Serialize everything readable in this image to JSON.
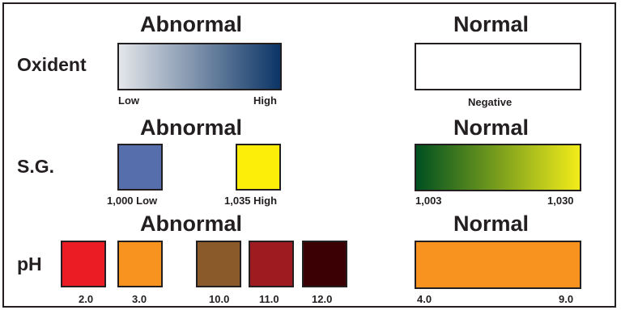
{
  "oxident": {
    "label": "Oxident",
    "abnormal_heading": "Abnormal",
    "normal_heading": "Normal",
    "abnormal_scale": {
      "low_label": "Low",
      "high_label": "High",
      "gradient_from": "#e4e6ea",
      "gradient_to": "#0c3566"
    },
    "normal_label": "Negative",
    "normal_color": "#ffffff"
  },
  "sg": {
    "label": "S.G.",
    "abnormal_heading": "Abnormal",
    "normal_heading": "Normal",
    "abnormal_swatches": [
      {
        "label": "1,000 Low",
        "color": "#566eab"
      },
      {
        "label": "1,035 High",
        "color": "#fdee0a"
      }
    ],
    "normal_scale": {
      "low_label": "1,003",
      "high_label": "1,030",
      "gradient_from": "#005020",
      "gradient_to": "#f2ec1a"
    }
  },
  "ph": {
    "label": "pH",
    "abnormal_heading": "Abnormal",
    "normal_heading": "Normal",
    "abnormal_swatches": [
      {
        "label": "2.0",
        "color": "#ec1c24"
      },
      {
        "label": "3.0",
        "color": "#f7931e"
      },
      {
        "label": "10.0",
        "color": "#8b5a2b"
      },
      {
        "label": "11.0",
        "color": "#9e1c20"
      },
      {
        "label": "12.0",
        "color": "#3a0003"
      }
    ],
    "normal_scale": {
      "low_label": "4.0",
      "high_label": "9.0",
      "color": "#f7931e"
    }
  }
}
